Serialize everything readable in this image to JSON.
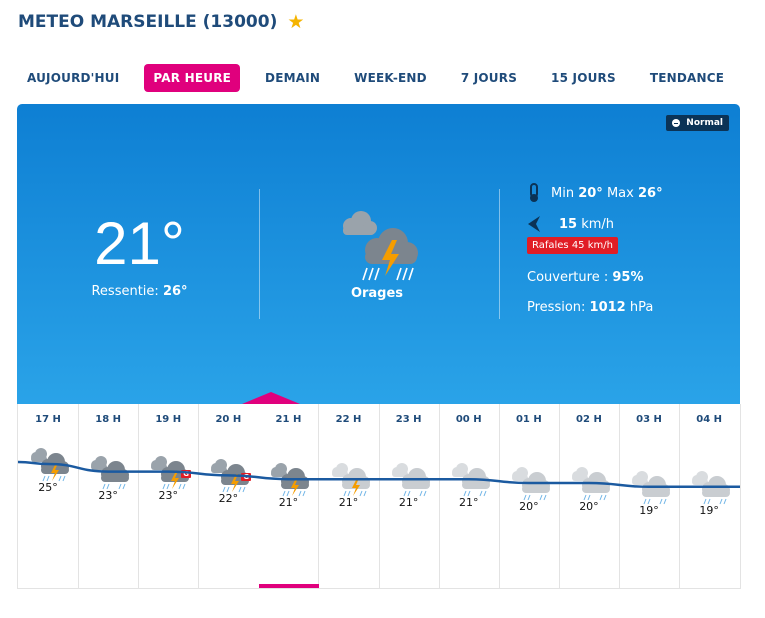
{
  "header": {
    "title": "METEO MARSEILLE (13000)"
  },
  "tabs": [
    {
      "label": "AUJOURD'HUI",
      "active": false
    },
    {
      "label": "PAR HEURE",
      "active": true
    },
    {
      "label": "DEMAIN",
      "active": false
    },
    {
      "label": "WEEK-END",
      "active": false
    },
    {
      "label": "7 JOURS",
      "active": false
    },
    {
      "label": "15 JOURS",
      "active": false
    },
    {
      "label": "TENDANCE",
      "active": false
    }
  ],
  "current": {
    "badge": "Normal",
    "temp": "21°",
    "feel_label": "Ressentie:",
    "feel_value": "26°",
    "condition": "Orages",
    "min_label": "Min",
    "min_value": "20°",
    "max_label": "Max",
    "max_value": "26°",
    "wind_value": "15",
    "wind_unit": "km/h",
    "gusts": "Rafales 45 km/h",
    "cover_label": "Couverture :",
    "cover_value": "95%",
    "pressure_label": "Pression:",
    "pressure_value": "1012",
    "pressure_unit": "hPa"
  },
  "hourly": [
    {
      "hour": "17 H",
      "temp": "25°",
      "icon": "storm-icon",
      "hail": false
    },
    {
      "hour": "18 H",
      "temp": "23°",
      "icon": "cloud-rain-icon",
      "hail": false
    },
    {
      "hour": "19 H",
      "temp": "23°",
      "icon": "storm-icon",
      "hail": true
    },
    {
      "hour": "20 H",
      "temp": "22°",
      "icon": "storm-icon",
      "hail": true
    },
    {
      "hour": "21 H",
      "temp": "21°",
      "icon": "storm-icon",
      "hail": false
    },
    {
      "hour": "22 H",
      "temp": "21°",
      "icon": "storm-icon",
      "hail": false
    },
    {
      "hour": "23 H",
      "temp": "21°",
      "icon": "cloud-rain-icon",
      "hail": false
    },
    {
      "hour": "00 H",
      "temp": "21°",
      "icon": "cloud-rain-icon",
      "hail": false
    },
    {
      "hour": "01 H",
      "temp": "20°",
      "icon": "cloud-rain-icon",
      "hail": false
    },
    {
      "hour": "02 H",
      "temp": "20°",
      "icon": "cloud-rain-icon",
      "hail": false
    },
    {
      "hour": "03 H",
      "temp": "19°",
      "icon": "cloud-rain-icon",
      "hail": false
    },
    {
      "hour": "04 H",
      "temp": "19°",
      "icon": "cloud-rain-icon",
      "hail": false
    }
  ],
  "hail_label": "G",
  "colors": {
    "accent": "#e0007d",
    "navy": "#1f4b7a",
    "gust": "#e11d25"
  }
}
